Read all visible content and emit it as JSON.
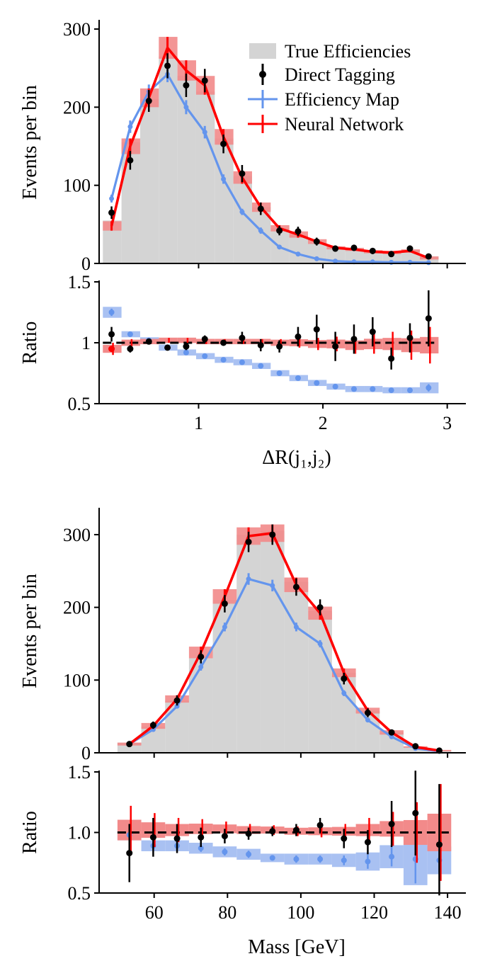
{
  "legend": {
    "true_eff": "True Efficiencies",
    "direct": "Direct Tagging",
    "effmap": "Efficiency Map",
    "nn": "Neural Network"
  },
  "colors": {
    "true": "#d4d4d4",
    "direct": "#000000",
    "effmap": "#6495ed",
    "effmap_band": "#a9c1f2",
    "nn": "#ff0000",
    "nn_band": "#f28a8a"
  },
  "chart_data": [
    {
      "type": "histogram",
      "xlabel": "ΔR(j₁,j₂)",
      "ylabel": "Events per bin",
      "xlim": [
        0.2,
        3.15
      ],
      "ylim": [
        0,
        310
      ],
      "xticks": [
        1,
        2,
        3
      ],
      "yticks": [
        0,
        100,
        200,
        300
      ],
      "bin_edges": [
        0.23,
        0.38,
        0.53,
        0.68,
        0.83,
        0.98,
        1.13,
        1.28,
        1.43,
        1.58,
        1.73,
        1.88,
        2.03,
        2.18,
        2.33,
        2.48,
        2.63,
        2.78,
        2.93
      ],
      "centers": [
        0.3,
        0.45,
        0.6,
        0.75,
        0.9,
        1.05,
        1.2,
        1.35,
        1.5,
        1.65,
        1.8,
        1.95,
        2.1,
        2.25,
        2.4,
        2.55,
        2.7,
        2.85
      ],
      "true": [
        55,
        155,
        210,
        265,
        240,
        220,
        160,
        112,
        72,
        45,
        36,
        26,
        20,
        18,
        15,
        13,
        17,
        9
      ],
      "direct": [
        65,
        132,
        208,
        253,
        228,
        234,
        153,
        115,
        70,
        42,
        41,
        28,
        19,
        20,
        16,
        12,
        19,
        9
      ],
      "direct_err": [
        8,
        12,
        14,
        16,
        15,
        15,
        12,
        11,
        8,
        6,
        6,
        5,
        4,
        4,
        4,
        3,
        4,
        3
      ],
      "effmap": [
        83,
        175,
        220,
        242,
        200,
        168,
        108,
        66,
        42,
        21,
        12,
        6,
        3,
        2,
        2,
        1.5,
        1.5,
        1
      ],
      "effmap_err": [
        5,
        8,
        9,
        10,
        9,
        8,
        6,
        4,
        4,
        2,
        1,
        1,
        1,
        0,
        0,
        0,
        0,
        0
      ],
      "nn": [
        48,
        150,
        212,
        276,
        247,
        228,
        162,
        110,
        72,
        45,
        37,
        28,
        20,
        18,
        15,
        14,
        16,
        7
      ],
      "nn_err": [
        6,
        10,
        12,
        14,
        13,
        12,
        10,
        8,
        6,
        4,
        4,
        3,
        2,
        2,
        2,
        2,
        2,
        2
      ],
      "ratio": {
        "ylabel": "Ratio",
        "ylim": [
          0.5,
          1.5
        ],
        "yticks": [
          0.5,
          1,
          1.5
        ],
        "ytick_labels": [
          "0.5",
          "1",
          "1.5"
        ],
        "direct": [
          1.07,
          0.95,
          1.01,
          0.96,
          0.97,
          1.03,
          1.0,
          1.04,
          0.98,
          0.97,
          1.05,
          1.11,
          0.97,
          1.03,
          1.09,
          0.87,
          1.04,
          1.2
        ],
        "direct_err": [
          0.06,
          0.03,
          0.02,
          0.02,
          0.03,
          0.03,
          0.02,
          0.05,
          0.05,
          0.05,
          0.08,
          0.12,
          0.12,
          0.12,
          0.12,
          0.09,
          0.12,
          0.23
        ],
        "effmap": [
          1.25,
          1.07,
          1.02,
          0.96,
          0.92,
          0.89,
          0.86,
          0.84,
          0.81,
          0.75,
          0.71,
          0.67,
          0.64,
          0.62,
          0.62,
          0.61,
          0.61,
          0.63
        ],
        "effmap_err": [
          0.03,
          0.01,
          0.01,
          0.01,
          0.01,
          0.01,
          0.01,
          0.01,
          0.01,
          0.01,
          0.01,
          0.01,
          0.01,
          0.01,
          0.01,
          0.01,
          0.01,
          0.03
        ],
        "nn": [
          0.95,
          1.0,
          1.01,
          1.02,
          1.02,
          1.01,
          1.01,
          1.01,
          1.01,
          1.0,
          1.0,
          0.99,
          0.99,
          0.98,
          0.99,
          0.99,
          0.98,
          0.98
        ],
        "nn_err": [
          0.05,
          0.03,
          0.02,
          0.02,
          0.02,
          0.02,
          0.02,
          0.02,
          0.02,
          0.03,
          0.04,
          0.05,
          0.06,
          0.07,
          0.08,
          0.1,
          0.12,
          0.15
        ],
        "reference": 1
      }
    },
    {
      "type": "histogram",
      "xlabel": "Mass [GeV]",
      "ylabel": "Events per bin",
      "xlim": [
        45,
        145
      ],
      "ylim": [
        0,
        335
      ],
      "xticks": [
        60,
        80,
        100,
        120,
        140
      ],
      "yticks": [
        0,
        100,
        200,
        300
      ],
      "bin_edges": [
        50,
        56.5,
        63,
        69.5,
        76,
        82.5,
        89,
        95.5,
        102,
        108.5,
        115,
        121.5,
        128,
        134.5,
        141
      ],
      "centers": [
        53.25,
        59.75,
        66.25,
        72.75,
        79.25,
        85.75,
        92.25,
        98.75,
        105.25,
        111.75,
        118.25,
        124.75,
        131.25,
        137.75
      ],
      "true": [
        14,
        36,
        72,
        130,
        210,
        300,
        305,
        235,
        195,
        110,
        58,
        28,
        8,
        3
      ],
      "direct": [
        12,
        38,
        72,
        132,
        205,
        290,
        300,
        228,
        200,
        102,
        55,
        28,
        9,
        3
      ],
      "direct_err": [
        3,
        5,
        7,
        9,
        12,
        14,
        14,
        12,
        11,
        8,
        6,
        4,
        2,
        1
      ],
      "effmap": [
        12,
        32,
        64,
        118,
        173,
        239,
        230,
        173,
        150,
        82,
        45,
        22,
        6,
        2
      ],
      "effmap_err": [
        1,
        2,
        3,
        5,
        6,
        8,
        8,
        6,
        5,
        4,
        3,
        2,
        1,
        0
      ],
      "nn": [
        12,
        37,
        74,
        138,
        215,
        298,
        302,
        231,
        192,
        110,
        58,
        28,
        8,
        3
      ],
      "nn_err": [
        2,
        4,
        5,
        8,
        10,
        12,
        12,
        10,
        9,
        6,
        4,
        3,
        1,
        1
      ],
      "ratio": {
        "ylabel": "Ratio",
        "ylim": [
          0.5,
          1.5
        ],
        "yticks": [
          0.5,
          1.0,
          1.5
        ],
        "ytick_labels": [
          "0.5",
          "1.0",
          "1.5"
        ],
        "direct": [
          0.83,
          0.96,
          0.95,
          0.96,
          0.97,
          0.99,
          1.01,
          1.02,
          1.06,
          0.95,
          0.92,
          1.07,
          1.16,
          0.9
        ],
        "direct_err": [
          0.24,
          0.16,
          0.12,
          0.08,
          0.06,
          0.05,
          0.04,
          0.05,
          0.06,
          0.08,
          0.1,
          0.19,
          0.35,
          0.5
        ],
        "effmap": [
          0.98,
          0.89,
          0.89,
          0.87,
          0.84,
          0.82,
          0.79,
          0.78,
          0.78,
          0.77,
          0.76,
          0.8,
          0.78,
          0.77
        ],
        "effmap_err": [
          0.03,
          0.03,
          0.03,
          0.03,
          0.03,
          0.03,
          0.02,
          0.03,
          0.03,
          0.04,
          0.06,
          0.08,
          0.2,
          0.1
        ],
        "nn": [
          1.02,
          1.02,
          1.02,
          1.03,
          1.03,
          1.02,
          1.02,
          1.01,
          1.01,
          1.01,
          1.02,
          1.03,
          1.0,
          1.0
        ],
        "nn_err": [
          0.2,
          0.14,
          0.1,
          0.08,
          0.06,
          0.05,
          0.04,
          0.04,
          0.05,
          0.06,
          0.1,
          0.14,
          0.25,
          0.4
        ],
        "reference": 1.0
      }
    }
  ]
}
